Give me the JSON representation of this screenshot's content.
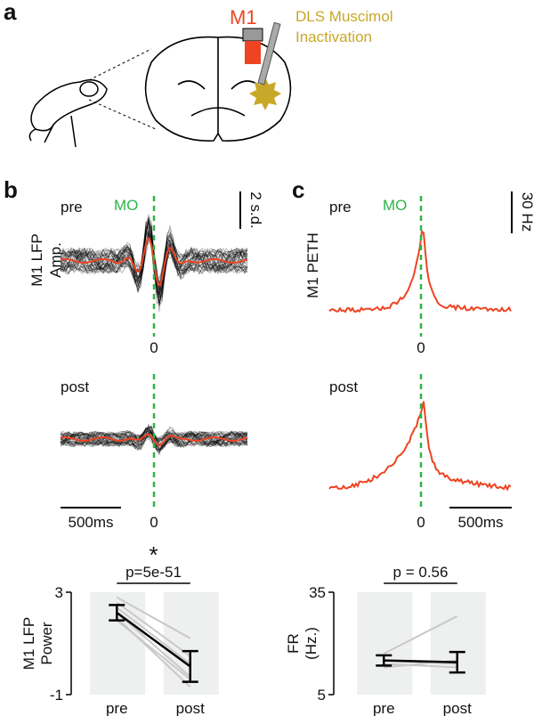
{
  "figure": {
    "panel_a": {
      "letter": "a",
      "region": "M1",
      "treatment": [
        "DLS Muscimol",
        "Inactivation"
      ]
    },
    "panel_b": {
      "letter": "b",
      "ylabel": [
        "M1 LFP",
        "Amp."
      ],
      "pre": "pre",
      "post": "post",
      "marker": "MO",
      "zero": "0",
      "scale_y": "2 s.d.",
      "scale_x": "500ms"
    },
    "panel_c": {
      "letter": "c",
      "ylabel": "M1 PETH",
      "pre": "pre",
      "post": "post",
      "marker": "MO",
      "zero": "0",
      "scale_y": "30 Hz",
      "scale_x": "500ms"
    }
  },
  "chart_data": [
    {
      "type": "errorbar",
      "ylabel": [
        "M1 LFP",
        "Power"
      ],
      "categories": [
        "pre",
        "post"
      ],
      "values": [
        2.2,
        0.1
      ],
      "errors": [
        0.3,
        0.6
      ],
      "color": "#000000",
      "individuals": [
        [
          2.8,
          1.2
        ],
        [
          2.6,
          0.5
        ],
        [
          2.4,
          0.2
        ],
        [
          2.2,
          -0.3
        ],
        [
          2.0,
          -0.7
        ],
        [
          1.9,
          -0.4
        ]
      ],
      "individual_color": "#c8c8c8",
      "band_color": "#eef0ef",
      "ylim": [
        -1,
        3
      ],
      "yticks": [
        -1,
        3
      ],
      "significance": "*",
      "annotation": "p=5e-51"
    },
    {
      "type": "errorbar",
      "ylabel": [
        "FR",
        "(Hz.)"
      ],
      "categories": [
        "pre",
        "post"
      ],
      "values": [
        15,
        14.5
      ],
      "errors": [
        1.5,
        3
      ],
      "color": "#000000",
      "individuals": [
        [
          17,
          28
        ],
        [
          15,
          14
        ],
        [
          14,
          13
        ],
        [
          13,
          15
        ]
      ],
      "individual_color": "#c8c8c8",
      "band_color": "#eef0ef",
      "ylim": [
        5,
        35
      ],
      "yticks": [
        5,
        35
      ],
      "annotation": "p = 0.56"
    }
  ]
}
